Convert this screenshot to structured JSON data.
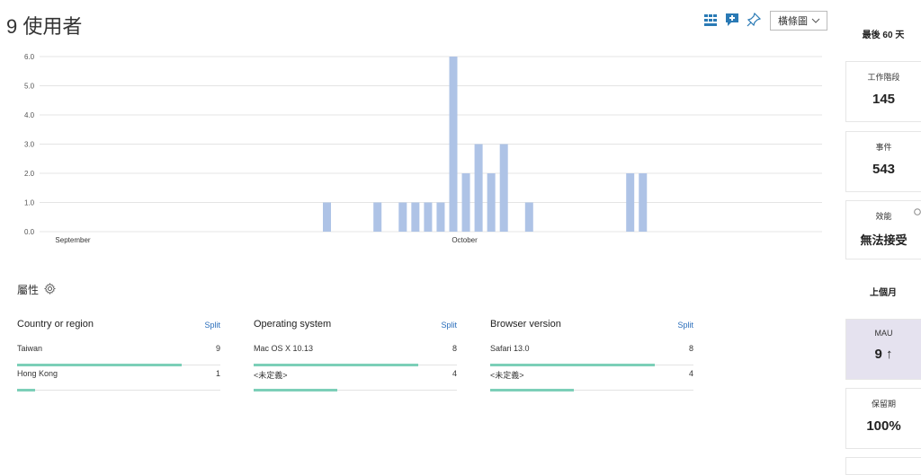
{
  "header": {
    "title": "9 使用者",
    "view_select": "橫條圖"
  },
  "toolbar": {
    "icons": [
      "grid-icon",
      "add-comment-icon",
      "pin-icon"
    ]
  },
  "chart_data": {
    "type": "bar",
    "y_ticks": [
      "0.0",
      "1.0",
      "2.0",
      "3.0",
      "4.0",
      "5.0",
      "6.0"
    ],
    "ylim": [
      0,
      6
    ],
    "x_labels": [
      {
        "label": "September",
        "day_index": 0
      },
      {
        "label": "October",
        "day_index": 31
      }
    ],
    "day_count": 60,
    "values": [
      0,
      0,
      0,
      0,
      0,
      0,
      0,
      0,
      0,
      0,
      0,
      0,
      0,
      0,
      0,
      0,
      0,
      0,
      0,
      0,
      1,
      0,
      0,
      0,
      1,
      0,
      1,
      1,
      1,
      1,
      6,
      2,
      3,
      2,
      3,
      0,
      1,
      0,
      0,
      0,
      0,
      0,
      0,
      0,
      2,
      2,
      0,
      0,
      0,
      0,
      0,
      0,
      0,
      0,
      0,
      0,
      0,
      0,
      0,
      0
    ],
    "bar_color": "#aec3e6"
  },
  "properties": {
    "title": "屬性",
    "split_label": "Split",
    "groups": [
      {
        "name": "Country or region",
        "rows": [
          {
            "label": "Taiwan",
            "count": "9",
            "fraction": 0.81
          },
          {
            "label": "Hong Kong",
            "count": "1",
            "fraction": 0.09
          }
        ]
      },
      {
        "name": "Operating system",
        "rows": [
          {
            "label": "Mac OS X 10.13",
            "count": "8",
            "fraction": 0.81
          },
          {
            "label": "<未定義>",
            "count": "4",
            "fraction": 0.41
          }
        ]
      },
      {
        "name": "Browser version",
        "rows": [
          {
            "label": "Safari 13.0",
            "count": "8",
            "fraction": 0.81
          },
          {
            "label": "<未定義>",
            "count": "4",
            "fraction": 0.41
          }
        ]
      }
    ],
    "bar_color": "#7ccfb8"
  },
  "sidebar": {
    "last60_title": "最後 60 天",
    "sessions": {
      "label": "工作階段",
      "value": "145"
    },
    "events": {
      "label": "事件",
      "value": "543"
    },
    "performance": {
      "label": "效能",
      "value": "無法接受"
    },
    "last_month_title": "上個月",
    "mau": {
      "label": "MAU",
      "value": "9",
      "trend": "↑"
    },
    "retention": {
      "label": "保留期",
      "value": "100%"
    }
  }
}
